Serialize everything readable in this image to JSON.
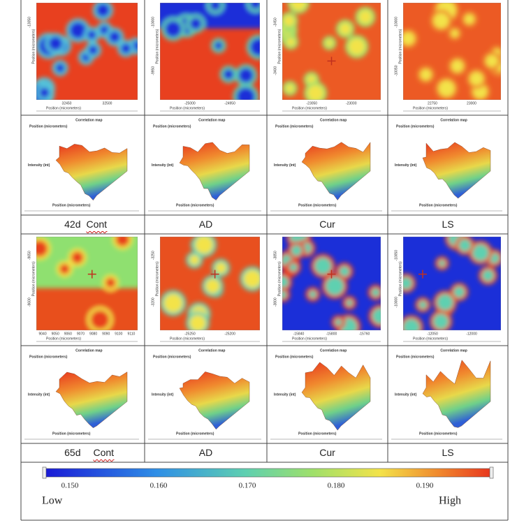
{
  "rows": [
    {
      "maps": [
        {
          "xticks": [
            "32450",
            "32500"
          ],
          "yticks": [
            "-13050"
          ]
        },
        {
          "xticks": [
            "-25000",
            "-24950"
          ],
          "yticks": [
            "-10000",
            "-9950"
          ]
        },
        {
          "xticks": [
            "-23050",
            "-23000"
          ],
          "yticks": [
            "-3450",
            "-3400"
          ]
        },
        {
          "xticks": [
            "22750",
            "23000"
          ],
          "yticks": [
            "-10000",
            "-10050"
          ]
        }
      ],
      "time": "42d",
      "group": "Cont",
      "labels": [
        "AD",
        "Cur",
        "LS"
      ]
    },
    {
      "maps": [
        {
          "xticks": [
            "9040",
            "9050",
            "9060",
            "9070",
            "9080",
            "9090",
            "9100",
            "9110"
          ],
          "yticks": [
            "-9650",
            "-9600"
          ]
        },
        {
          "xticks": [
            "-25250",
            "-25200"
          ],
          "yticks": [
            "-3250",
            "-3200"
          ]
        },
        {
          "xticks": [
            "-15840",
            "-15800",
            "-15760"
          ],
          "yticks": [
            "-3850",
            "-3800"
          ]
        },
        {
          "xticks": [
            "-12050",
            "-12000"
          ],
          "yticks": [
            "-10050",
            "-10000"
          ]
        }
      ],
      "time": "65d",
      "group": "Cont",
      "labels": [
        "AD",
        "Cur",
        "LS"
      ]
    }
  ],
  "map_axis_label": "Position (micrometers)",
  "surface": {
    "title": "Correlation map",
    "position_label": "Position (micrometers)",
    "intensity_label": "Intensity (int)"
  },
  "colorbar": {
    "ticks": [
      "0.150",
      "0.160",
      "0.170",
      "0.180",
      "0.190"
    ],
    "low": "Low",
    "high": "High"
  }
}
